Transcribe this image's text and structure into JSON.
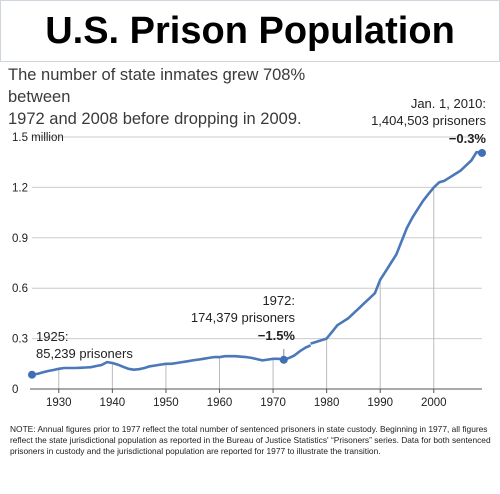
{
  "header": {
    "title": "U.S. Prison Population",
    "subtitle_line1": "The number of state inmates grew 708% between",
    "subtitle_line2": "1972 and 2008 before dropping in 2009."
  },
  "annotations": {
    "a1925_line1": "1925:",
    "a1925_line2": "85,239 prisoners",
    "a1972_line1": "1972:",
    "a1972_line2": "174,379 prisoners",
    "a1972_change": "−1.5%",
    "a2010_line1": "Jan. 1, 2010:",
    "a2010_line2": "1,404,503 prisoners",
    "a2010_change": "−0.3%"
  },
  "note": "NOTE: Annual figures prior to 1977 reflect the total number of sentenced prisoners in state custody.  Beginning in 1977, all figures reflect the state jurisdictional population as reported in the Bureau of Justice Statistics' “Prisoners” series.  Data for both sentenced prisoners in custody and the jurisdictional population are reported for 1977 to illustrate the transition.",
  "colors": {
    "line": "#4a78b8",
    "marker": "#3f6fb5",
    "grid": "#cccccc",
    "axis": "#555555"
  },
  "chart_data": {
    "type": "line",
    "title": "U.S. Prison Population",
    "xlabel": "",
    "ylabel": "",
    "xlim": [
      1925,
      2009
    ],
    "ylim": [
      0,
      1.5
    ],
    "grid": true,
    "x_ticks": [
      1930,
      1940,
      1950,
      1960,
      1970,
      1980,
      1990,
      2000
    ],
    "x_tick_labels": [
      "1930",
      "1940",
      "1950",
      "1960",
      "1970",
      "1980",
      "1990",
      "2000"
    ],
    "y_ticks": [
      0,
      0.3,
      0.6,
      0.9,
      1.2,
      1.5
    ],
    "y_tick_labels": [
      "0",
      "0.3",
      "0.6",
      "0.9",
      "1.2",
      "1.5 million"
    ],
    "highlight_points": [
      {
        "x": 1925,
        "y": 0.085
      },
      {
        "x": 1972,
        "y": 0.174
      },
      {
        "x": 2009,
        "y": 1.405
      }
    ],
    "series": [
      {
        "segments": [
          {
            "x": [
              1925,
              1926,
              1927,
              1928,
              1929,
              1930,
              1931,
              1932,
              1933,
              1934,
              1935,
              1936,
              1937,
              1938,
              1939,
              1940,
              1941,
              1942,
              1943,
              1944,
              1945,
              1946,
              1947,
              1948,
              1949,
              1950,
              1951,
              1952,
              1953,
              1954,
              1955,
              1956,
              1957,
              1958,
              1959,
              1960,
              1961,
              1962,
              1963,
              1964,
              1965,
              1966,
              1967,
              1968,
              1969,
              1970,
              1971,
              1972,
              1973,
              1974,
              1975,
              1976,
              1977
            ],
            "y": [
              0.085,
              0.09,
              0.099,
              0.107,
              0.113,
              0.12,
              0.125,
              0.125,
              0.125,
              0.126,
              0.128,
              0.13,
              0.137,
              0.143,
              0.16,
              0.155,
              0.145,
              0.132,
              0.12,
              0.115,
              0.118,
              0.125,
              0.135,
              0.14,
              0.145,
              0.15,
              0.15,
              0.155,
              0.16,
              0.165,
              0.17,
              0.175,
              0.18,
              0.185,
              0.19,
              0.19,
              0.195,
              0.195,
              0.195,
              0.192,
              0.19,
              0.185,
              0.178,
              0.17,
              0.175,
              0.18,
              0.18,
              0.174,
              0.185,
              0.2,
              0.225,
              0.245,
              0.26
            ]
          },
          {
            "x": [
              1977,
              1978,
              1979,
              1980,
              1981,
              1982,
              1983,
              1984,
              1985,
              1986,
              1987,
              1988,
              1989,
              1990,
              1991,
              1992,
              1993,
              1994,
              1995,
              1996,
              1997,
              1998,
              1999,
              2000,
              2001,
              2002,
              2003,
              2004,
              2005,
              2006,
              2007,
              2008,
              2009
            ],
            "y": [
              0.27,
              0.28,
              0.29,
              0.3,
              0.34,
              0.38,
              0.4,
              0.42,
              0.45,
              0.48,
              0.51,
              0.54,
              0.57,
              0.65,
              0.7,
              0.75,
              0.8,
              0.88,
              0.96,
              1.02,
              1.07,
              1.12,
              1.16,
              1.2,
              1.23,
              1.24,
              1.26,
              1.28,
              1.3,
              1.33,
              1.36,
              1.41,
              1.405
            ]
          }
        ]
      }
    ]
  }
}
